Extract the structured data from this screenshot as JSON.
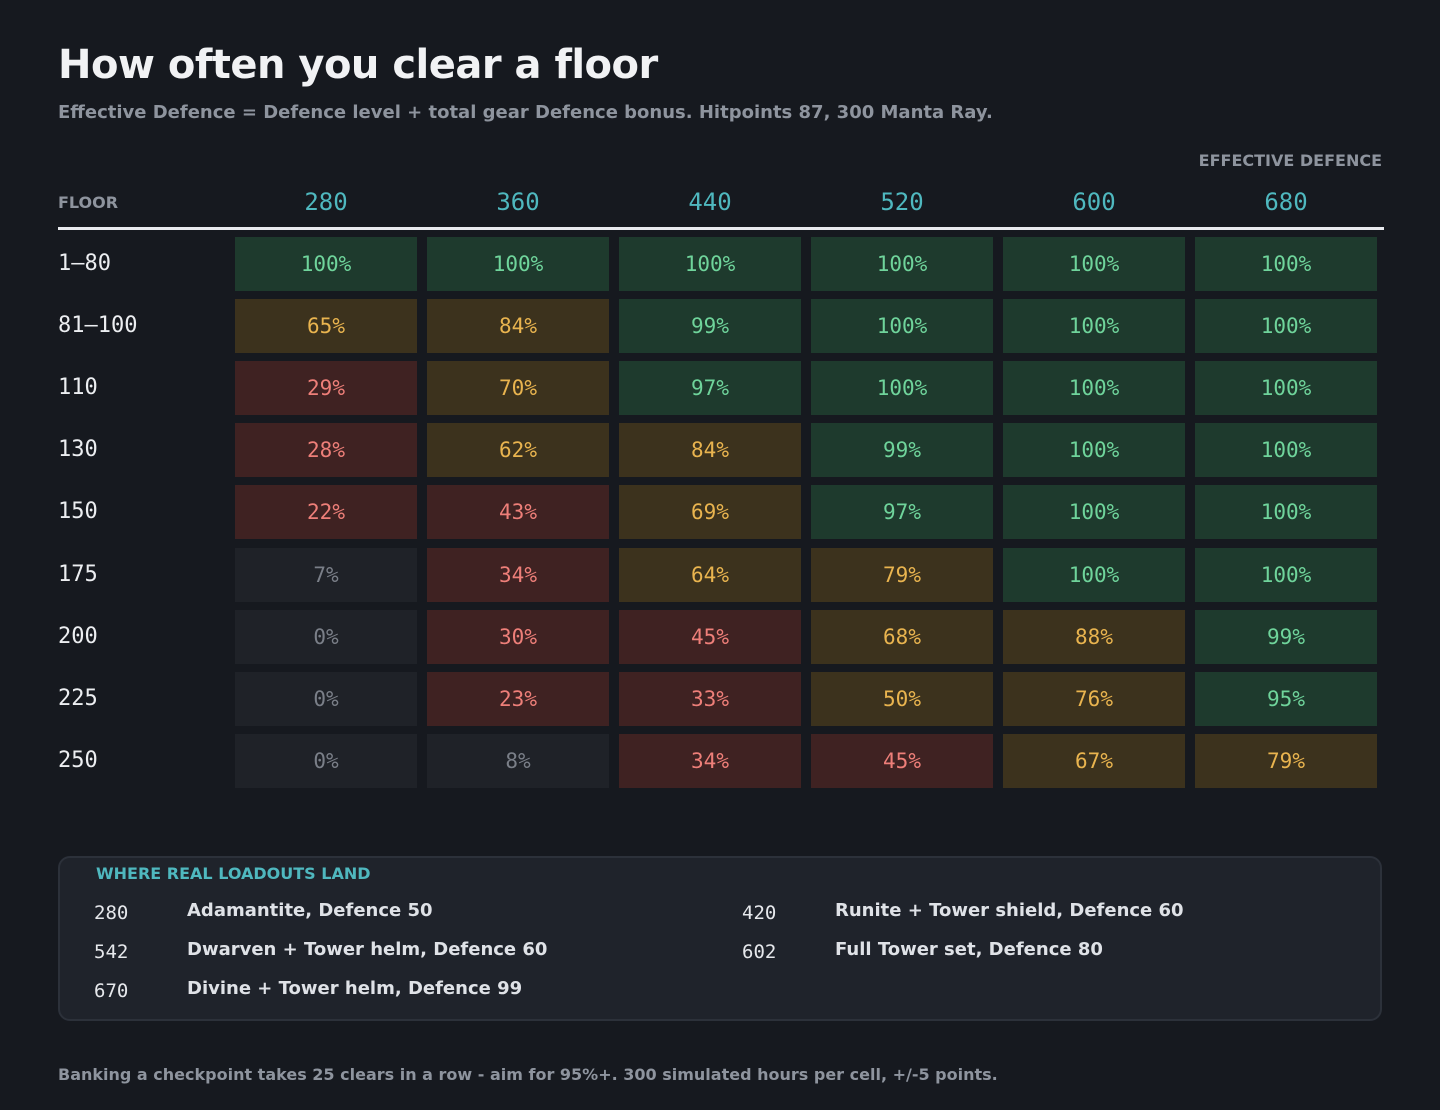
{
  "header": {
    "title": "How often you clear a floor",
    "subtitle": "Effective Defence  =  Defence level  +  total gear Defence bonus.   Hitpoints 87, 300 Manta Ray."
  },
  "chart_data": {
    "type": "heatmap",
    "row_header": "FLOOR",
    "column_title": "EFFECTIVE DEFENCE",
    "columns": [
      "280",
      "360",
      "440",
      "520",
      "600",
      "680"
    ],
    "rows": [
      "1–80",
      "81–100",
      "110",
      "130",
      "150",
      "175",
      "200",
      "225",
      "250"
    ],
    "values": [
      [
        100,
        100,
        100,
        100,
        100,
        100
      ],
      [
        65,
        84,
        99,
        100,
        100,
        100
      ],
      [
        29,
        70,
        97,
        100,
        100,
        100
      ],
      [
        28,
        62,
        84,
        99,
        100,
        100
      ],
      [
        22,
        43,
        69,
        97,
        100,
        100
      ],
      [
        7,
        34,
        64,
        79,
        100,
        100
      ],
      [
        0,
        30,
        45,
        68,
        88,
        99
      ],
      [
        0,
        23,
        33,
        50,
        76,
        95
      ],
      [
        0,
        8,
        34,
        45,
        67,
        79
      ]
    ],
    "unit": "%",
    "colors": {
      "high": "#6fd49b",
      "medium": "#e9b44f",
      "low": "#ee7f79",
      "minimal": "#7a7f88"
    }
  },
  "loadouts": {
    "title": "WHERE REAL LOADOUTS LAND",
    "items": [
      {
        "value": "280",
        "label": "Adamantite, Defence 50"
      },
      {
        "value": "420",
        "label": "Runite + Tower shield, Defence 60"
      },
      {
        "value": "542",
        "label": "Dwarven + Tower helm, Defence 60"
      },
      {
        "value": "602",
        "label": "Full Tower set, Defence 80"
      },
      {
        "value": "670",
        "label": "Divine + Tower helm, Defence 99"
      }
    ]
  },
  "footer": {
    "note": "Banking a checkpoint takes 25 clears in a row - aim for 95%+. 300 simulated hours per cell, +/-5 points."
  }
}
